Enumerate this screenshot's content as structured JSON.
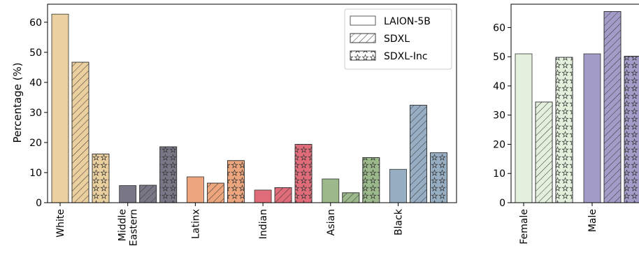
{
  "chart_data": [
    {
      "type": "bar",
      "ylabel": "Percentage (%)",
      "ylim": [
        0,
        66
      ],
      "yticks": [
        0,
        10,
        20,
        30,
        40,
        50,
        60
      ],
      "categories": [
        "White",
        "Middle Eastern",
        "Latinx",
        "Indian",
        "Asian",
        "Black"
      ],
      "category_colors": [
        "#ebd09f",
        "#797786",
        "#eca57c",
        "#e06c7a",
        "#9bb98a",
        "#97aec2"
      ],
      "series": [
        {
          "name": "LAION-5B",
          "pattern": "plain",
          "values": [
            62.7,
            5.7,
            8.6,
            4.2,
            7.9,
            11.1
          ]
        },
        {
          "name": "SDXL",
          "pattern": "hatch",
          "values": [
            46.7,
            5.8,
            6.5,
            5.0,
            3.3,
            32.4
          ]
        },
        {
          "name": "SDXL-Inc",
          "pattern": "stars",
          "values": [
            16.2,
            18.6,
            14.0,
            19.4,
            15.0,
            16.6
          ]
        }
      ],
      "legend": {
        "position": "top-right",
        "entries": [
          "LAION-5B",
          "SDXL",
          "SDXL-Inc"
        ]
      },
      "grid": false
    },
    {
      "type": "bar",
      "ylabel": "",
      "ylim": [
        0,
        68
      ],
      "yticks": [
        0,
        10,
        20,
        30,
        40,
        50,
        60
      ],
      "categories": [
        "Female",
        "Male"
      ],
      "category_colors": [
        "#e3f0dc",
        "#a39bc8"
      ],
      "series": [
        {
          "name": "LAION-5B",
          "pattern": "plain",
          "values": [
            51.0,
            51.0
          ]
        },
        {
          "name": "SDXL",
          "pattern": "hatch",
          "values": [
            34.5,
            65.5
          ]
        },
        {
          "name": "SDXL-Inc",
          "pattern": "stars",
          "values": [
            49.8,
            50.2
          ]
        }
      ],
      "grid": false
    }
  ]
}
